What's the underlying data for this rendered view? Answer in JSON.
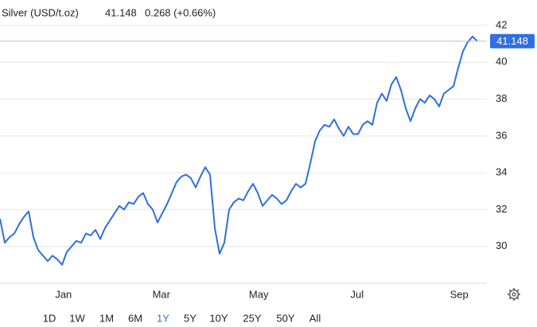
{
  "chart_data": {
    "type": "line",
    "title": "Silver (USD/t.oz)",
    "change": "0.268 (+0.66%)",
    "color": "#2f6fdf",
    "change_color": "#2ea84a",
    "values": [
      31.5,
      30.2,
      30.5,
      30.7,
      31.2,
      31.6,
      31.9,
      30.5,
      29.8,
      29.5,
      29.2,
      29.5,
      29.3,
      29.0,
      29.7,
      30.0,
      30.3,
      30.2,
      30.7,
      30.6,
      30.9,
      30.4,
      31.0,
      31.4,
      31.8,
      32.2,
      32.0,
      32.4,
      32.3,
      32.7,
      32.9,
      32.3,
      32.0,
      31.3,
      31.8,
      32.3,
      32.9,
      33.5,
      33.8,
      33.9,
      33.7,
      33.2,
      33.8,
      34.3,
      33.9,
      31.0,
      29.6,
      30.2,
      32.0,
      32.4,
      32.6,
      32.5,
      33.0,
      33.4,
      32.9,
      32.2,
      32.5,
      32.8,
      32.6,
      32.3,
      32.5,
      33.0,
      33.4,
      33.2,
      33.4,
      34.5,
      35.7,
      36.3,
      36.6,
      36.5,
      36.9,
      36.4,
      36.0,
      36.5,
      36.1,
      36.1,
      36.6,
      36.8,
      36.6,
      37.8,
      38.3,
      37.9,
      38.8,
      39.2,
      38.5,
      37.5,
      36.8,
      37.5,
      38.0,
      37.8,
      38.2,
      38.0,
      37.6,
      38.3,
      38.5,
      38.7,
      39.7,
      40.6,
      41.1,
      41.4,
      41.148
    ],
    "xlim": [
      0,
      102
    ],
    "xticks": [
      {
        "value": 13.3,
        "label": "Jan"
      },
      {
        "value": 33.8,
        "label": "Mar"
      },
      {
        "value": 54.2,
        "label": "May"
      },
      {
        "value": 74.8,
        "label": "Jul"
      },
      {
        "value": 96.2,
        "label": "Sep"
      }
    ],
    "ylim": [
      28,
      42.5
    ],
    "yticks": [
      30,
      32,
      34,
      36,
      38,
      40,
      42
    ],
    "grid": true
  },
  "range_buttons": [
    "1D",
    "1W",
    "1M",
    "6M",
    "1Y",
    "5Y",
    "10Y",
    "25Y",
    "50Y",
    "All"
  ],
  "selected_range": "1Y"
}
